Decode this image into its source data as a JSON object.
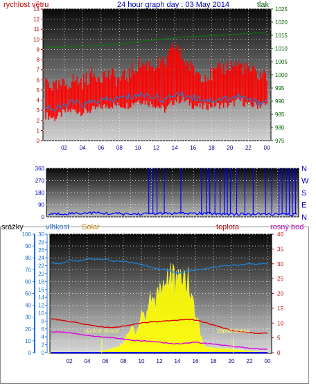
{
  "title": "24 hour graph day : 03 May 2014",
  "chart_data": [
    {
      "type": "line",
      "panel": "wind-pressure",
      "left_label": "rychlost větru",
      "right_label": "tlak",
      "x_ticks": [
        "02",
        "04",
        "06",
        "08",
        "10",
        "12",
        "14",
        "16",
        "18",
        "20",
        "22",
        "00"
      ],
      "ylim_left": [
        0,
        13
      ],
      "y_ticks_left": [
        0,
        1,
        2,
        3,
        4,
        5,
        6,
        7,
        8,
        9,
        10,
        11,
        12,
        13
      ],
      "ylim_right": [
        975,
        1025
      ],
      "y_ticks_right": [
        975,
        980,
        985,
        990,
        995,
        1000,
        1005,
        1010,
        1015,
        1020,
        1025
      ],
      "grid": true,
      "series": [
        {
          "axis": "left",
          "style": "band",
          "color": "#ff0000",
          "x": [
            0,
            1,
            2,
            3,
            4,
            5,
            6,
            7,
            8,
            9,
            10,
            11,
            12,
            13,
            14,
            15,
            16,
            17,
            18,
            19,
            20,
            21,
            22,
            23,
            24
          ],
          "low": [
            2.5,
            2.2,
            2.8,
            3.0,
            2.8,
            3.0,
            3.3,
            3.5,
            3.5,
            3.5,
            4.0,
            3.8,
            3.5,
            3.0,
            4.0,
            4.0,
            3.5,
            3.3,
            3.5,
            3.5,
            3.5,
            4.0,
            3.5,
            3.5,
            3.5
          ],
          "high": [
            6.0,
            5.2,
            5.5,
            6.0,
            5.8,
            6.5,
            6.5,
            6.5,
            6.0,
            6.5,
            7.5,
            7.5,
            7.5,
            7.5,
            9.5,
            8.0,
            7.0,
            6.5,
            6.5,
            7.0,
            7.5,
            7.5,
            7.0,
            6.5,
            6.5
          ]
        },
        {
          "axis": "left",
          "style": "line",
          "color": "#1e7fd0",
          "x": [
            0,
            1,
            2,
            3,
            4,
            5,
            6,
            7,
            8,
            9,
            10,
            11,
            12,
            13,
            14,
            15,
            16,
            17,
            18,
            19,
            20,
            21,
            22,
            23,
            24
          ],
          "y": [
            3.5,
            3.0,
            3.5,
            3.8,
            3.5,
            3.8,
            4.0,
            4.0,
            4.2,
            4.3,
            4.5,
            4.5,
            4.3,
            4.0,
            4.6,
            4.5,
            4.3,
            4.1,
            4.0,
            4.1,
            4.2,
            4.4,
            4.0,
            3.8,
            3.9
          ]
        },
        {
          "axis": "right",
          "style": "line",
          "color": "#008000",
          "x": [
            0,
            2,
            4,
            6,
            8,
            10,
            12,
            14,
            16,
            18,
            20,
            22,
            24
          ],
          "y": [
            1010.5,
            1010.5,
            1010.8,
            1011.2,
            1011.8,
            1012.6,
            1013.3,
            1014.0,
            1014.6,
            1014.8,
            1015.2,
            1015.8,
            1016.0
          ]
        }
      ]
    },
    {
      "type": "line",
      "panel": "wind-direction",
      "ylim_left": [
        0,
        360
      ],
      "y_ticks_left": [
        0,
        90,
        180,
        270,
        360
      ],
      "right_labels": [
        "N",
        "W",
        "S",
        "E",
        "N"
      ],
      "grid": true,
      "series": [
        {
          "axis": "left",
          "style": "baseline",
          "color": "#0000ff",
          "x": [
            0,
            2,
            4,
            6,
            8,
            10,
            12,
            14,
            16,
            18,
            20,
            22,
            24
          ],
          "y": [
            20,
            25,
            30,
            25,
            20,
            25,
            25,
            25,
            25,
            20,
            20,
            20,
            15
          ]
        },
        {
          "axis": "left",
          "style": "spikes",
          "color": "#0000ff",
          "x": [
            9.7,
            10.1,
            10.5,
            11.2,
            12.8,
            14.8,
            15.3,
            15.6,
            16.1,
            16.6,
            17.0,
            17.3,
            17.6,
            18.2,
            19.0,
            19.8,
            21.0,
            21.6,
            22.3,
            22.6,
            23.0,
            23.3,
            23.6,
            23.9
          ],
          "y": [
            360,
            360,
            360,
            360,
            360,
            360,
            360,
            360,
            360,
            360,
            360,
            360,
            360,
            360,
            360,
            360,
            360,
            360,
            360,
            360,
            360,
            360,
            360,
            360
          ]
        }
      ]
    },
    {
      "type": "area",
      "panel": "humidity-solar-temperature",
      "labels": [
        "srážky",
        "vlhkost",
        "Solar",
        "teplota",
        "rosný bod"
      ],
      "y_axes": [
        {
          "name": "srážky",
          "ticks": [
            0,
            10,
            20,
            30,
            40,
            50,
            60,
            70,
            80,
            90,
            100
          ],
          "range": [
            0,
            100
          ]
        },
        {
          "name": "vlhkost",
          "ticks": [
            0,
            2,
            4,
            6,
            8,
            10,
            12,
            14,
            16,
            18,
            20,
            22,
            24,
            26,
            28,
            30
          ],
          "range": [
            0,
            30
          ]
        },
        {
          "name": "teplota",
          "ticks": [
            0,
            5,
            10,
            15,
            20,
            25,
            30,
            35,
            40
          ],
          "range": [
            0,
            40
          ]
        }
      ],
      "x_ticks": [
        "02",
        "04",
        "06",
        "08",
        "10",
        "12",
        "14",
        "16",
        "18",
        "20",
        "22",
        "00"
      ],
      "grid": true,
      "annotations": [
        {
          "text": "východ slunce",
          "x": 5.6
        },
        {
          "text": "západ slunce",
          "x": 20.2
        }
      ],
      "series": [
        {
          "axis": "srážky",
          "style": "line",
          "color": "#1e7fd0",
          "x": [
            0,
            1,
            2,
            3,
            4,
            5,
            6,
            7,
            8,
            9,
            10,
            11,
            12,
            13,
            14,
            15,
            16,
            17,
            18,
            19,
            20,
            21,
            22,
            23,
            24
          ],
          "y": [
            76,
            75,
            78,
            77,
            79,
            79,
            79,
            77,
            77,
            76,
            75,
            72,
            71,
            70,
            67,
            69,
            70,
            71,
            72,
            73,
            74,
            74,
            75,
            75,
            75
          ]
        },
        {
          "axis": "srážky",
          "style": "area",
          "color": "#ffff00",
          "x": [
            0,
            5,
            6,
            7,
            8,
            8.5,
            9,
            9.5,
            10,
            10.5,
            11,
            11.5,
            12,
            12.5,
            13,
            13.5,
            14,
            14.5,
            15,
            15.5,
            16,
            16.5,
            17,
            24
          ],
          "y": [
            0,
            0,
            2,
            4,
            8,
            15,
            22,
            18,
            35,
            28,
            50,
            40,
            60,
            55,
            68,
            62,
            55,
            66,
            64,
            48,
            35,
            18,
            5,
            0
          ]
        },
        {
          "axis": "teplota",
          "style": "line",
          "color": "#dd0000",
          "x": [
            0,
            1,
            2,
            3,
            4,
            5,
            6,
            7,
            8,
            9,
            10,
            11,
            12,
            13,
            14,
            15,
            16,
            17,
            18,
            19,
            20,
            21,
            22,
            23,
            24
          ],
          "y": [
            11.5,
            11.0,
            10.5,
            10.0,
            9.5,
            9.0,
            8.5,
            8.5,
            9.0,
            9.5,
            10.0,
            10.3,
            10.5,
            10.8,
            11.0,
            11.3,
            11.0,
            10.3,
            9.3,
            8.4,
            7.5,
            7.0,
            6.8,
            6.6,
            6.5
          ]
        },
        {
          "axis": "teplota",
          "style": "line",
          "color": "#dd00dd",
          "x": [
            0,
            1,
            2,
            3,
            4,
            5,
            6,
            7,
            8,
            9,
            10,
            11,
            12,
            13,
            14,
            15,
            16,
            17,
            18,
            19,
            20,
            21,
            22,
            23,
            24
          ],
          "y": [
            7.0,
            7.0,
            6.8,
            6.2,
            5.8,
            5.5,
            5.3,
            5.0,
            4.6,
            4.2,
            4.0,
            3.8,
            3.5,
            3.2,
            3.0,
            3.2,
            3.5,
            3.2,
            2.8,
            2.5,
            2.2,
            1.8,
            1.5,
            1.3,
            1.2
          ]
        },
        {
          "axis": "srážky",
          "style": "line",
          "color": "#0000ff",
          "x": [
            0,
            24
          ],
          "y": [
            0,
            0
          ]
        }
      ]
    }
  ]
}
